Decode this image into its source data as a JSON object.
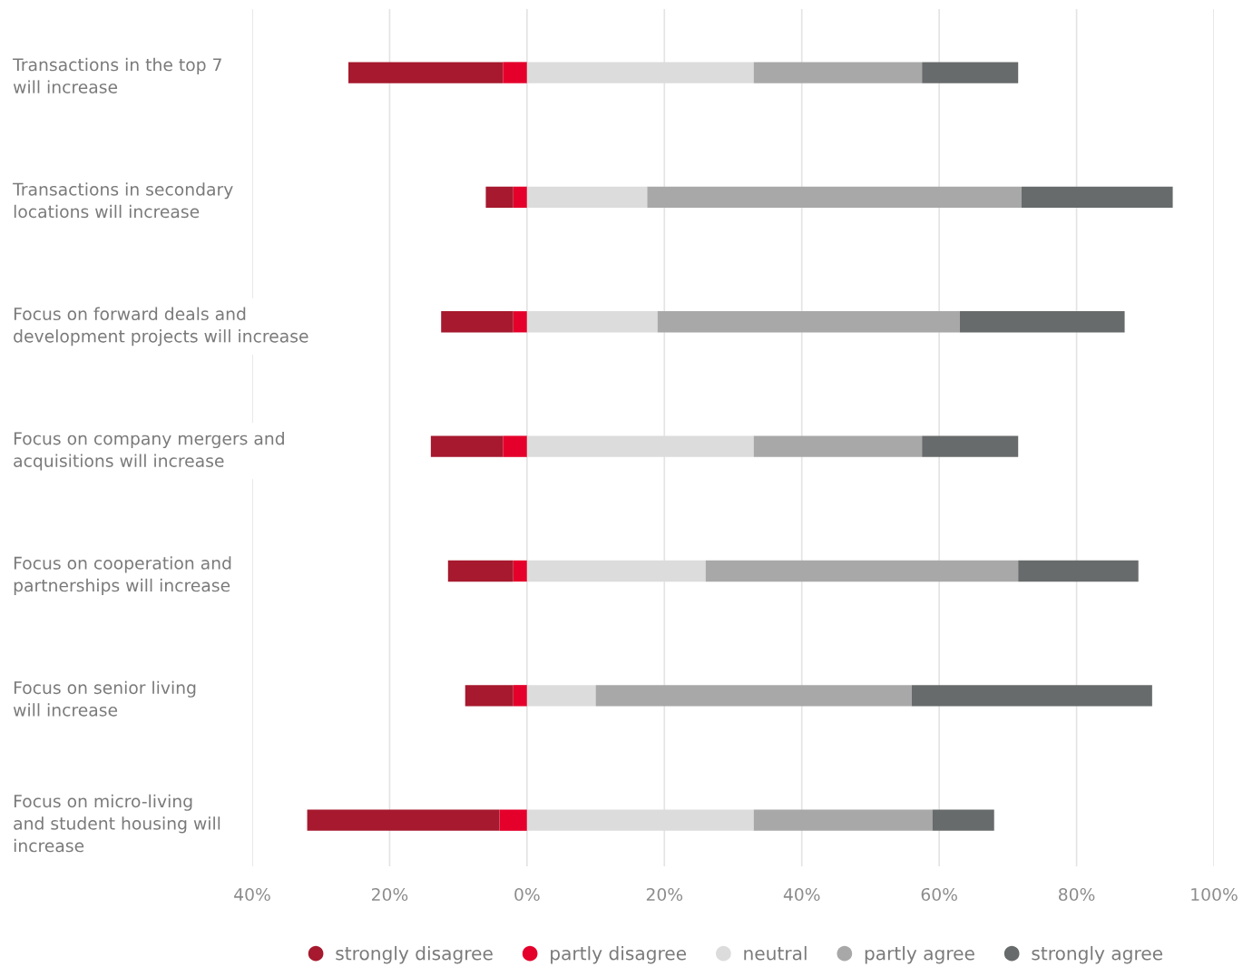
{
  "chart_data": {
    "type": "bar",
    "orientation": "horizontal",
    "categories": [
      "Transactions in the top 7\nwill increase",
      "Transactions in secondary\nlocations will increase",
      "Focus on forward deals and\ndevelopment projects will increase",
      "Focus on company mergers and\nacquisitions will increase",
      "Focus on cooperation and\npartnerships will increase",
      "Focus on senior living\nwill increase",
      "Focus on micro-living\nand student housing will\nincrease"
    ],
    "series": [
      {
        "name": "strongly disagree",
        "color": "#a6192e",
        "values": [
          22.5,
          4,
          10.5,
          10.5,
          9.5,
          7,
          28
        ],
        "base": [
          -26,
          -6,
          -12.5,
          -14,
          -11.5,
          -9,
          -32
        ]
      },
      {
        "name": "partly disagree",
        "color": "#e4002b",
        "values": [
          3.5,
          2,
          2,
          3.5,
          2,
          2,
          4
        ],
        "base": [
          -3.5,
          -2,
          -2,
          -3.5,
          -2,
          -2,
          -4
        ]
      },
      {
        "name": "neutral",
        "color": "#dcdcdc",
        "values": [
          33,
          17.5,
          19,
          33,
          26,
          10,
          33
        ],
        "base": [
          0,
          0,
          0,
          0,
          0,
          0,
          0
        ]
      },
      {
        "name": "partly agree",
        "color": "#a8a8a9",
        "values": [
          24.5,
          54.5,
          44,
          24.5,
          45.5,
          46,
          26
        ],
        "base": [
          33,
          17.5,
          19,
          33,
          26,
          10,
          33
        ]
      },
      {
        "name": "strongly agree",
        "color": "#686b6b",
        "values": [
          14,
          22,
          24,
          14,
          17.5,
          35,
          9
        ],
        "base": [
          57.5,
          72,
          63,
          57.5,
          71.5,
          56,
          59
        ]
      }
    ],
    "xlim": [
      -40,
      100
    ],
    "xticks": [
      {
        "value": -40,
        "label": "40%"
      },
      {
        "value": -20,
        "label": "20%"
      },
      {
        "value": 0,
        "label": "0%"
      },
      {
        "value": 20,
        "label": "20%"
      },
      {
        "value": 40,
        "label": "40%"
      },
      {
        "value": 60,
        "label": "60%"
      },
      {
        "value": 80,
        "label": "80%"
      },
      {
        "value": 100,
        "label": "100%"
      }
    ],
    "grid": "x",
    "legend": "bottom"
  }
}
